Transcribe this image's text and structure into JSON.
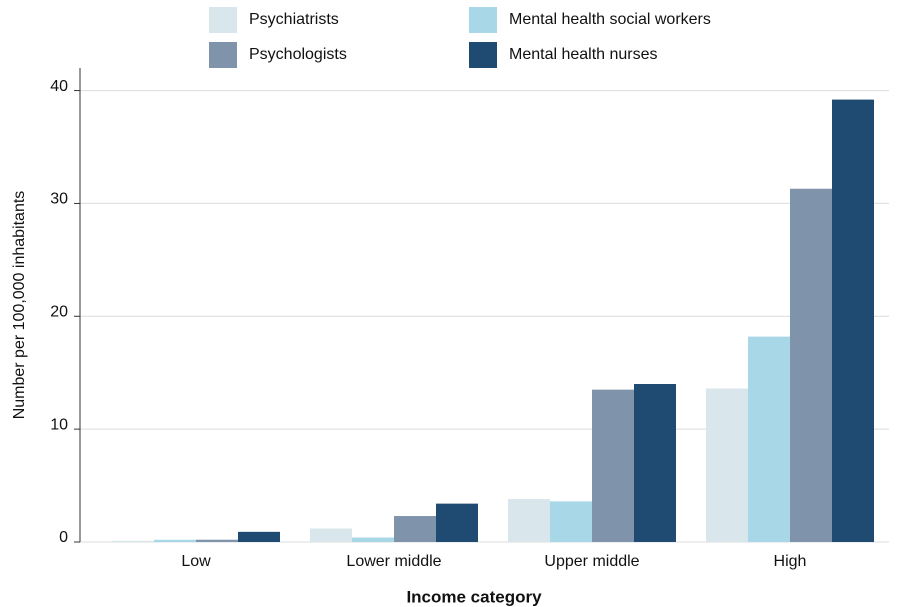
{
  "chart_data": {
    "type": "bar",
    "x_label": "Income category",
    "y_label": "Number per 100,000 inhabitants",
    "categories": [
      "Low",
      "Lower middle",
      "Upper middle",
      "High"
    ],
    "series": [
      {
        "name": "Psychiatrists",
        "color": "#d9e6eb",
        "values": [
          0.1,
          1.2,
          3.8,
          13.6
        ]
      },
      {
        "name": "Mental health social workers",
        "color": "#a8d8e8",
        "values": [
          0.2,
          0.4,
          3.6,
          18.2
        ]
      },
      {
        "name": "Psychologists",
        "color": "#7f93aa",
        "values": [
          0.2,
          2.3,
          13.5,
          31.3
        ]
      },
      {
        "name": "Mental health nurses",
        "color": "#1f4a72",
        "values": [
          0.9,
          3.4,
          14.0,
          39.2
        ]
      }
    ],
    "ylim": [
      0,
      42
    ],
    "yticks": [
      0,
      10,
      20,
      30,
      40
    ],
    "grid": true
  }
}
